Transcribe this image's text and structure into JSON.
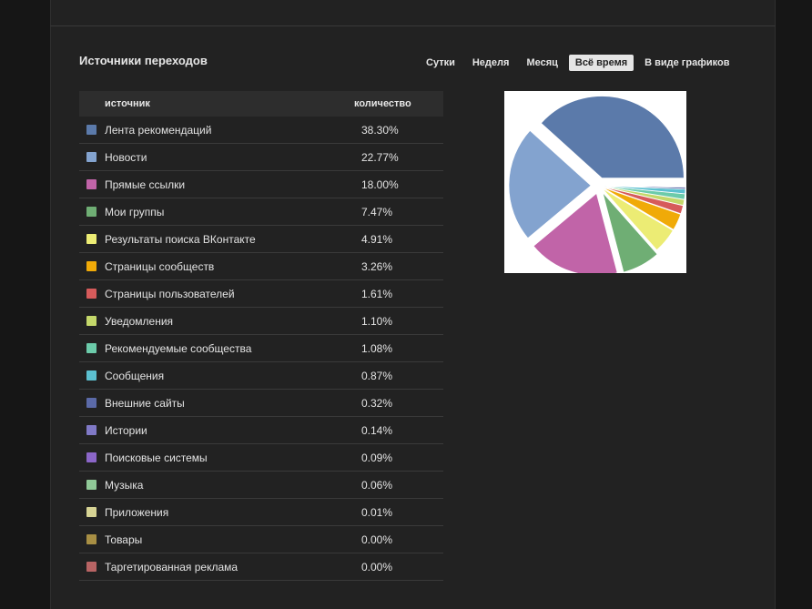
{
  "header": {
    "title": "Источники переходов"
  },
  "periods": [
    {
      "label": "Сутки",
      "active": false
    },
    {
      "label": "Неделя",
      "active": false
    },
    {
      "label": "Месяц",
      "active": false
    },
    {
      "label": "Всё время",
      "active": true
    },
    {
      "label": "В виде графиков",
      "active": false
    }
  ],
  "table": {
    "col_source": "источник",
    "col_count": "количество",
    "rows": [
      {
        "name": "Лента рекомендаций",
        "value": "38.30%",
        "color": "#5b7aaa"
      },
      {
        "name": "Новости",
        "value": "22.77%",
        "color": "#83a3cf"
      },
      {
        "name": "Прямые ссылки",
        "value": "18.00%",
        "color": "#c164a8"
      },
      {
        "name": "Мои группы",
        "value": "7.47%",
        "color": "#6fae74"
      },
      {
        "name": "Результаты поиска ВКонтакте",
        "value": "4.91%",
        "color": "#ecec74"
      },
      {
        "name": "Страницы сообществ",
        "value": "3.26%",
        "color": "#f0aa08"
      },
      {
        "name": "Страницы пользователей",
        "value": "1.61%",
        "color": "#d65b5b"
      },
      {
        "name": "Уведомления",
        "value": "1.10%",
        "color": "#c4d86a"
      },
      {
        "name": "Рекомендуемые сообщества",
        "value": "1.08%",
        "color": "#6ccbaa"
      },
      {
        "name": "Сообщения",
        "value": "0.87%",
        "color": "#5cc0d0"
      },
      {
        "name": "Внешние сайты",
        "value": "0.32%",
        "color": "#5b6aa8"
      },
      {
        "name": "Истории",
        "value": "0.14%",
        "color": "#8079c6"
      },
      {
        "name": "Поисковые системы",
        "value": "0.09%",
        "color": "#8b66c8"
      },
      {
        "name": "Музыка",
        "value": "0.06%",
        "color": "#90c998"
      },
      {
        "name": "Приложения",
        "value": "0.01%",
        "color": "#d6d394"
      },
      {
        "name": "Товары",
        "value": "0.00%",
        "color": "#a88f44"
      },
      {
        "name": "Таргетированная реклама",
        "value": "0.00%",
        "color": "#b86464"
      }
    ]
  },
  "chart_data": {
    "type": "pie",
    "categories": [
      "Лента рекомендаций",
      "Новости",
      "Прямые ссылки",
      "Мои группы",
      "Результаты поиска ВКонтакте",
      "Страницы сообществ",
      "Страницы пользователей",
      "Уведомления",
      "Рекомендуемые сообщества",
      "Сообщения",
      "Внешние сайты",
      "Истории",
      "Поисковые системы",
      "Музыка",
      "Приложения",
      "Товары",
      "Таргетированная реклама"
    ],
    "values": [
      38.3,
      22.77,
      18.0,
      7.47,
      4.91,
      3.26,
      1.61,
      1.1,
      1.08,
      0.87,
      0.32,
      0.14,
      0.09,
      0.06,
      0.01,
      0.0,
      0.0
    ],
    "colors": [
      "#5b7aaa",
      "#83a3cf",
      "#c164a8",
      "#6fae74",
      "#ecec74",
      "#f0aa08",
      "#d65b5b",
      "#c4d86a",
      "#6ccbaa",
      "#5cc0d0",
      "#5b6aa8",
      "#8079c6",
      "#8b66c8",
      "#90c998",
      "#d6d394",
      "#a88f44",
      "#b86464"
    ]
  }
}
